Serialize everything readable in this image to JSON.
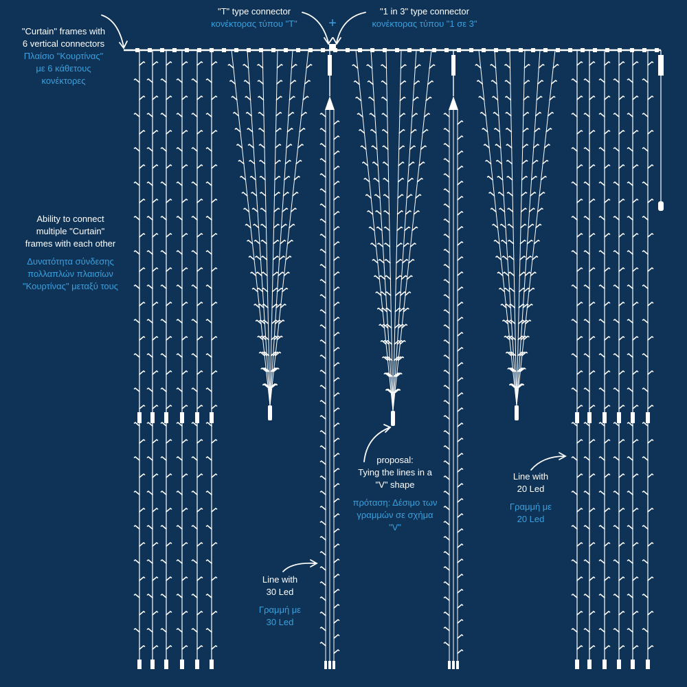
{
  "colors": {
    "background": "#0f3356",
    "wire": "#ffffff",
    "accent": "#3aa0de"
  },
  "labels": {
    "curtain_frame": {
      "en": [
        "\"Curtain\" frames with",
        "6 vertical connectors"
      ],
      "gr": [
        "Πλαίσιο \"Κουρτίνας\"",
        "με 6 κάθετους",
        "κονέκτορες"
      ]
    },
    "t_connector": {
      "en": [
        "\"T\" type connector"
      ],
      "gr": [
        "κονέκτορας τύπου \"T\""
      ]
    },
    "one_in_three_connector": {
      "en": [
        "\"1 in 3\" type connector"
      ],
      "gr": [
        "κονέκτορας τύπου \"1 σε 3\""
      ]
    },
    "connect_multiple": {
      "en": [
        "Ability to connect",
        "multiple \"Curtain\"",
        "frames with each other"
      ],
      "gr": [
        "Δυνατότητα σύνδεσης",
        "πολλαπλών πλαισίων",
        "\"Κουρτίνας\" μεταξύ τους"
      ]
    },
    "proposal": {
      "en": [
        "proposal:",
        "Tying the lines in a",
        "\"V\" shape"
      ],
      "gr": [
        "πρόταση: Δέσιμο των",
        "γραμμών σε σχήμα",
        "\"V\""
      ]
    },
    "line_20": {
      "en": [
        "Line with",
        "20 Led"
      ],
      "gr": [
        "Γραμμή με",
        "20 Led"
      ]
    },
    "line_30": {
      "en": [
        "Line with",
        "30 Led"
      ],
      "gr": [
        "Γραμμή με",
        "30 Led"
      ]
    }
  },
  "plus_sign": "+",
  "icons": [
    "led-bulb-icon",
    "curved-arrow-icon",
    "connector-plug-icon"
  ]
}
